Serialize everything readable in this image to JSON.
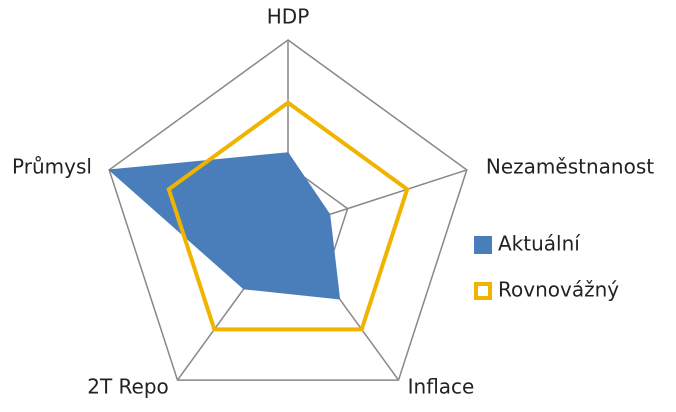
{
  "chart_data": {
    "type": "radar",
    "categories": [
      "HDP",
      "Nezaměstnanost",
      "Inflace",
      "2T Repo",
      "Průmysl"
    ],
    "series": [
      {
        "name": "Aktuální",
        "color": "#4a7ebb",
        "values": [
          1.2,
          0.7,
          1.4,
          1.2,
          3.0
        ]
      },
      {
        "name": "Rovnovážný",
        "color": "#f0b400",
        "values": [
          2,
          2,
          2,
          2,
          2
        ]
      }
    ],
    "ylim": [
      0,
      3
    ],
    "yticks": [
      1,
      3
    ],
    "grid": true,
    "legend": "right"
  }
}
